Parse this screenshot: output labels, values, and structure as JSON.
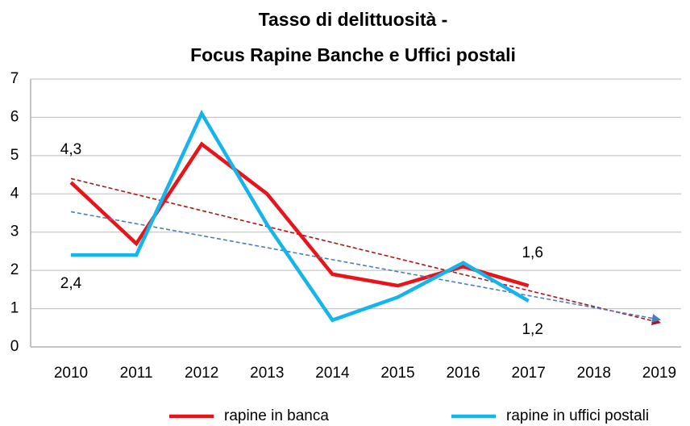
{
  "chart_data": {
    "type": "line",
    "title": [
      "Tasso di delittuosità -",
      "Focus Rapine Banche e Uffici postali"
    ],
    "categories": [
      "2010",
      "2011",
      "2012",
      "2013",
      "2014",
      "2015",
      "2016",
      "2017",
      "2018",
      "2019"
    ],
    "series": [
      {
        "name": "rapine in banca",
        "color": "#e8141a",
        "values": [
          4.3,
          2.7,
          5.3,
          4.0,
          1.9,
          1.6,
          2.1,
          1.6,
          null,
          null
        ],
        "value_labels": [
          "4,3",
          null,
          null,
          null,
          null,
          null,
          null,
          "1,6",
          null,
          null
        ]
      },
      {
        "name": "rapine in uffici postali",
        "color": "#14b4ec",
        "values": [
          2.4,
          2.4,
          6.1,
          3.2,
          0.7,
          1.3,
          2.2,
          1.2,
          null,
          null
        ],
        "value_labels": [
          "2,4",
          null,
          null,
          null,
          null,
          null,
          null,
          "1,2",
          null,
          null
        ]
      }
    ],
    "trend_colors": [
      "#b01418",
      "#4a7ebb"
    ],
    "ylim": [
      0,
      7
    ],
    "yticks": [
      0,
      1,
      2,
      3,
      4,
      5,
      6,
      7
    ],
    "grid": true,
    "legend": "bottom"
  }
}
